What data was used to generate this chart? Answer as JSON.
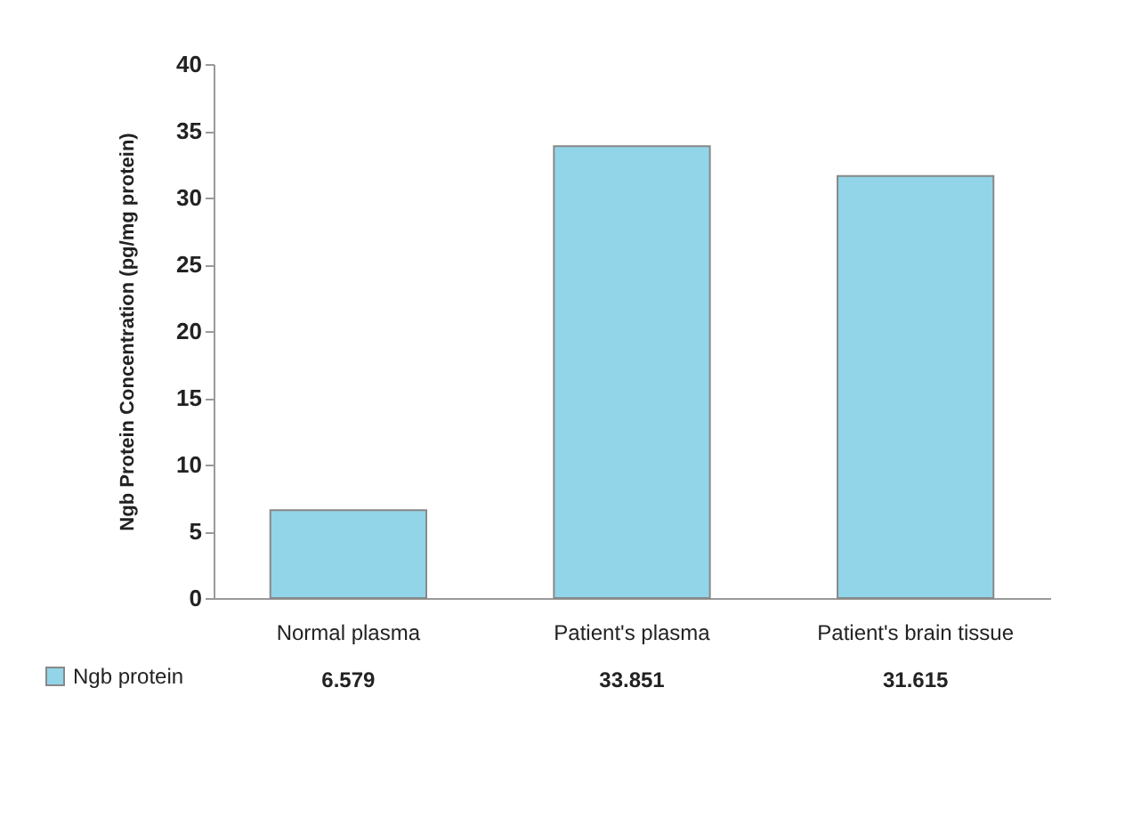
{
  "chart_data": {
    "type": "bar",
    "ylabel": "Ngb Protein Concentration (pg/mg protein)",
    "categories": [
      "Normal plasma",
      "Patient's plasma",
      "Patient's brain tissue"
    ],
    "series": [
      {
        "name": "Ngb protein",
        "color": "#92d5e8",
        "values": [
          6.579,
          33.851,
          31.615
        ]
      }
    ],
    "ylim": [
      0,
      40
    ],
    "yticks": [
      0,
      5,
      10,
      15,
      20,
      25,
      30,
      35,
      40
    ],
    "grid": false,
    "legend": "bottom left",
    "data_labels": true
  }
}
